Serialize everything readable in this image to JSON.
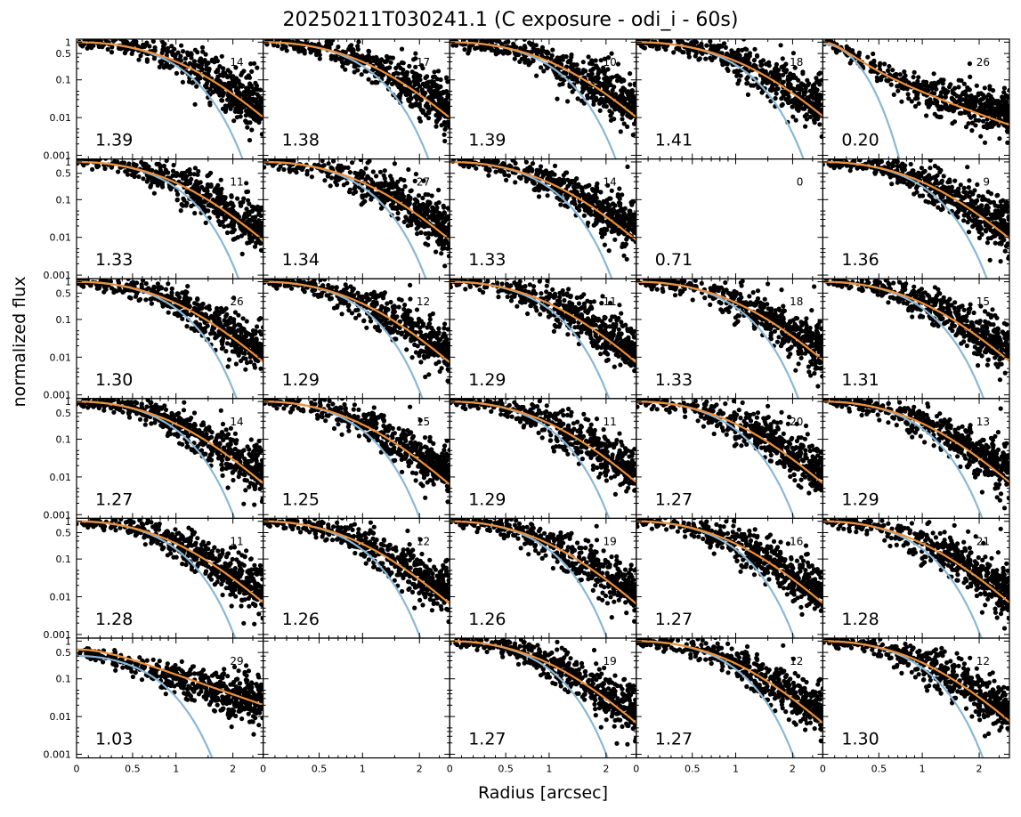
{
  "title": "20250211T030241.1 (C exposure - odi_i - 60s)",
  "xlabel": "Radius [arcsec]",
  "ylabel": "normalized flux",
  "colors": {
    "points": "#808080",
    "gaussian": "#8ab7d6",
    "moffat": "#f0903a",
    "axes": "#000000"
  },
  "chart_data": {
    "type": "scatter",
    "layout": {
      "rows": 6,
      "cols": 5
    },
    "x_scale": "asinh-like (tick labels 0, 0.5, 1, 2)",
    "y_scale": "log",
    "xlim": [
      0,
      2.8
    ],
    "ylim": [
      0.0008,
      1.2
    ],
    "x_ticks": [
      "0",
      "0.5",
      "1",
      "2"
    ],
    "y_ticks": [
      "1",
      "0.5",
      "0.1",
      "0.01",
      "0.001"
    ],
    "series": [
      {
        "name": "",
        "role": "measured pixels"
      },
      {
        "name": "",
        "role": "gaussian fit"
      },
      {
        "name": "",
        "role": "moffat fit"
      }
    ],
    "panels": [
      {
        "fwhm": "1.39",
        "stars": "14"
      },
      {
        "fwhm": "1.38",
        "stars": "17"
      },
      {
        "fwhm": "1.39",
        "stars": "10"
      },
      {
        "fwhm": "1.41",
        "stars": "18"
      },
      {
        "fwhm": "0.20",
        "stars": "26"
      },
      {
        "fwhm": "1.33",
        "stars": "11"
      },
      {
        "fwhm": "1.34",
        "stars": "27"
      },
      {
        "fwhm": "1.33",
        "stars": "14"
      },
      {
        "fwhm": "0.71",
        "stars": "0"
      },
      {
        "fwhm": "1.36",
        "stars": "9"
      },
      {
        "fwhm": "1.30",
        "stars": "26"
      },
      {
        "fwhm": "1.29",
        "stars": "12"
      },
      {
        "fwhm": "1.29",
        "stars": "11"
      },
      {
        "fwhm": "1.33",
        "stars": "18"
      },
      {
        "fwhm": "1.31",
        "stars": "15"
      },
      {
        "fwhm": "1.27",
        "stars": "14"
      },
      {
        "fwhm": "1.25",
        "stars": "15"
      },
      {
        "fwhm": "1.29",
        "stars": "11"
      },
      {
        "fwhm": "1.27",
        "stars": "20"
      },
      {
        "fwhm": "1.29",
        "stars": "13"
      },
      {
        "fwhm": "1.28",
        "stars": "11"
      },
      {
        "fwhm": "1.26",
        "stars": "12"
      },
      {
        "fwhm": "1.26",
        "stars": "19"
      },
      {
        "fwhm": "1.27",
        "stars": "16"
      },
      {
        "fwhm": "1.28",
        "stars": "21"
      },
      {
        "fwhm": "1.03",
        "stars": "29"
      },
      {
        "fwhm": "",
        "stars": ""
      },
      {
        "fwhm": "1.27",
        "stars": "19"
      },
      {
        "fwhm": "1.27",
        "stars": "12"
      },
      {
        "fwhm": "1.30",
        "stars": "12"
      }
    ]
  }
}
